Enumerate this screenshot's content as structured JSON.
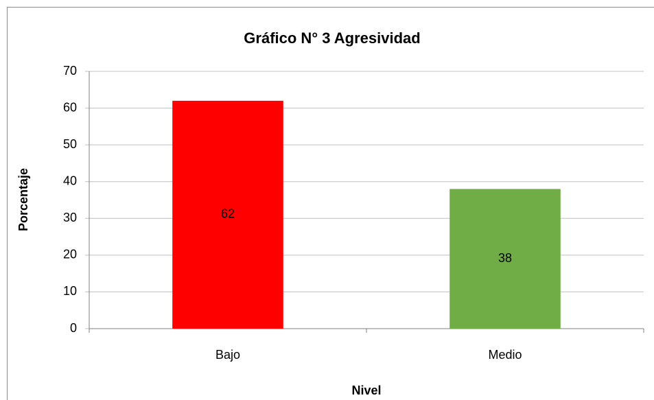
{
  "chart_data": {
    "type": "bar",
    "title": "Gráfico N° 3 Agresividad",
    "x_label": "Nivel",
    "y_label": "Porcentaje",
    "categories": [
      "Bajo",
      "Medio"
    ],
    "values": [
      62,
      38
    ],
    "colors": [
      "#ff0000",
      "#70ad47"
    ],
    "ylim": [
      0,
      70
    ],
    "yticks": [
      0,
      10,
      20,
      30,
      40,
      50,
      60,
      70
    ],
    "grid": true
  }
}
